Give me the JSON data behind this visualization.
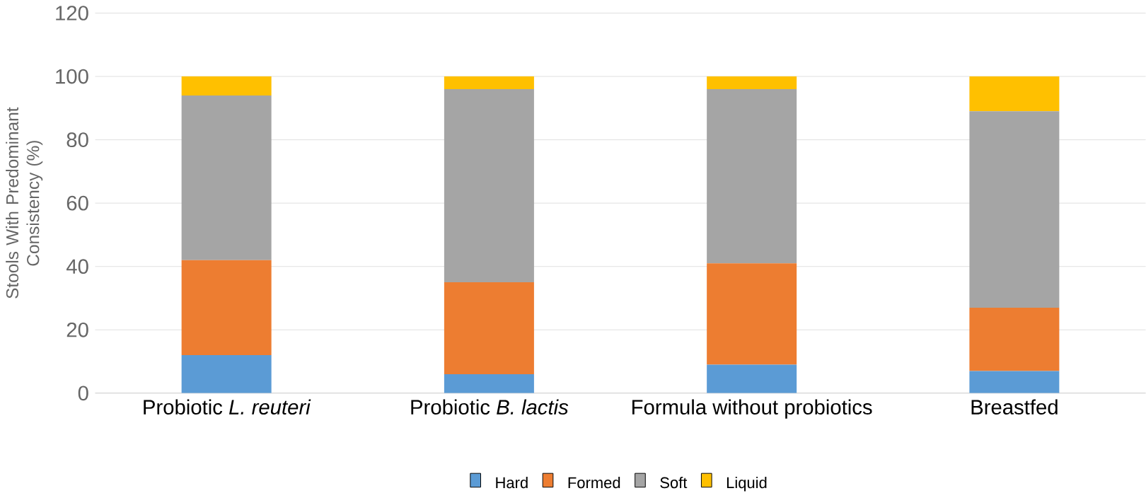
{
  "chart_data": {
    "type": "bar",
    "stacked": true,
    "ylabel": "Stools  With Predominant Consistency (%)",
    "categories": [
      "Probiotic *L. reuteri*",
      "Probiotic *B. lactis*",
      "Formula without probiotics",
      "Breastfed"
    ],
    "series": [
      {
        "name": "Hard",
        "color": "#5b9bd5",
        "values": [
          12,
          6,
          9,
          7
        ]
      },
      {
        "name": "Formed",
        "color": "#ed7d31",
        "values": [
          30,
          29,
          32,
          20
        ]
      },
      {
        "name": "Soft",
        "color": "#a5a5a5",
        "values": [
          52,
          61,
          55,
          62
        ]
      },
      {
        "name": "Liquid",
        "color": "#ffc000",
        "values": [
          6,
          4,
          4,
          11
        ]
      }
    ],
    "ylim": [
      0,
      120
    ],
    "yticks": [
      0,
      20,
      40,
      60,
      80,
      100,
      120
    ],
    "grid": "y",
    "legend": "bottom"
  }
}
